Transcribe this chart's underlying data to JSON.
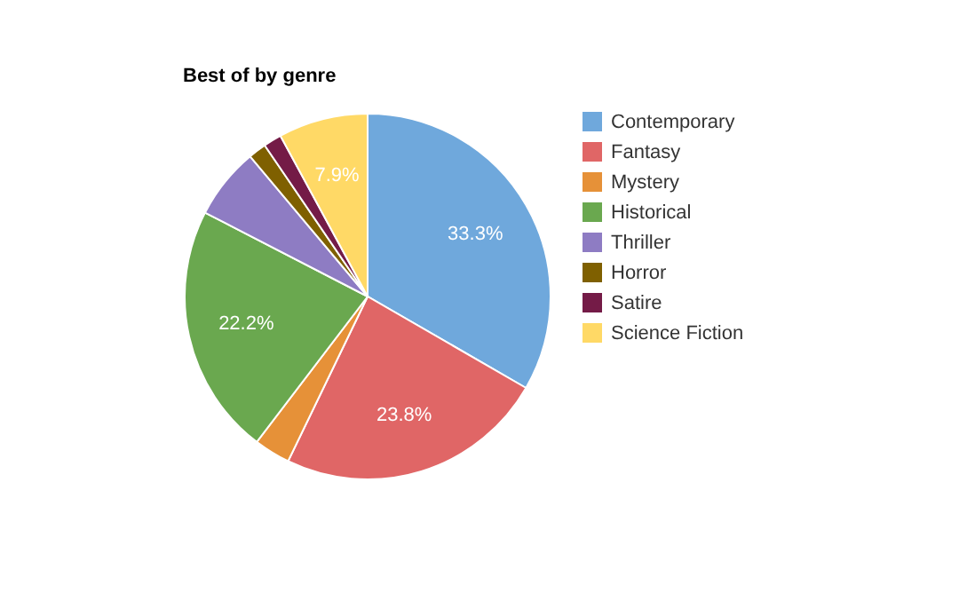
{
  "chart_data": {
    "type": "pie",
    "title": "Best of by genre",
    "categories": [
      "Contemporary",
      "Fantasy",
      "Mystery",
      "Historical",
      "Thriller",
      "Horror",
      "Satire",
      "Science Fiction"
    ],
    "values": [
      33.3,
      23.8,
      3.2,
      22.2,
      6.3,
      1.6,
      1.6,
      7.9
    ],
    "colors": [
      "#6fa8dc",
      "#e06666",
      "#e69138",
      "#6aa84f",
      "#8e7cc3",
      "#7f6000",
      "#741b47",
      "#ffd966"
    ],
    "value_labels": [
      "33.3%",
      "23.8%",
      null,
      "22.2%",
      null,
      null,
      null,
      "7.9%"
    ],
    "legend": "right"
  }
}
